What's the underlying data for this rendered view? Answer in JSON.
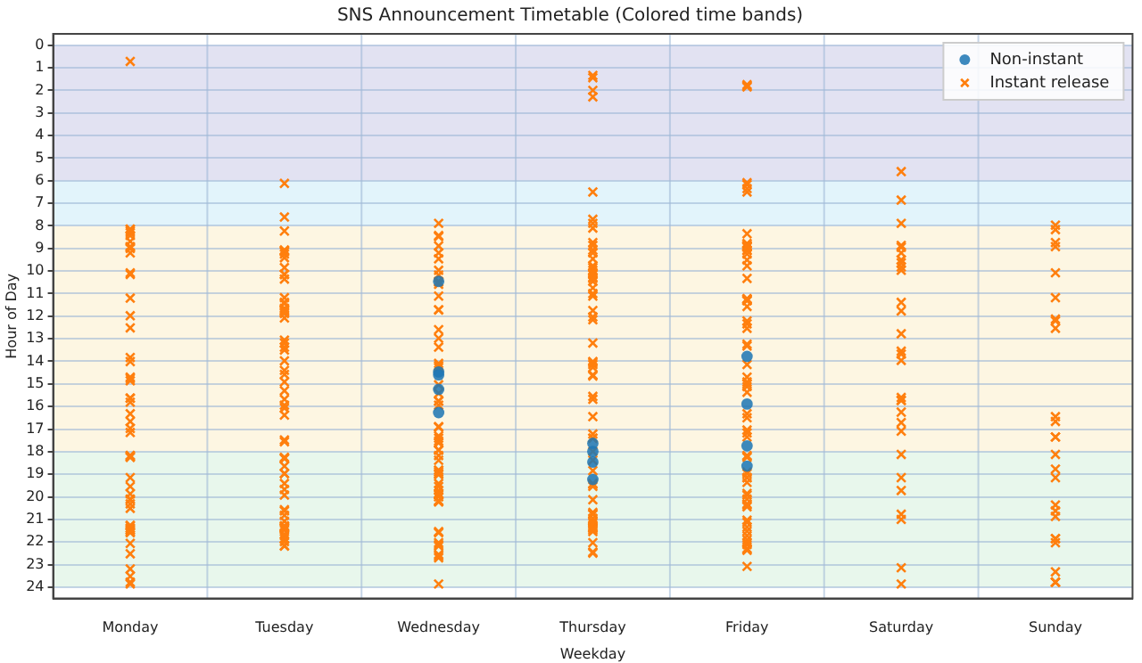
{
  "chart_data": {
    "type": "scatter",
    "title": "SNS Announcement Timetable (Colored time bands)",
    "xlabel": "Weekday",
    "ylabel": "Hour of Day",
    "categories": [
      "Monday",
      "Tuesday",
      "Wednesday",
      "Thursday",
      "Friday",
      "Saturday",
      "Sunday"
    ],
    "ylim": [
      24.5,
      -0.5
    ],
    "yticks": [
      0,
      1,
      2,
      3,
      4,
      5,
      6,
      7,
      8,
      9,
      10,
      11,
      12,
      13,
      14,
      15,
      16,
      17,
      18,
      19,
      20,
      21,
      22,
      23,
      24
    ],
    "grid": true,
    "legend": "top right",
    "bands": [
      {
        "axis": "y",
        "from": 0,
        "to": 6,
        "color": "#e2e2f2"
      },
      {
        "axis": "y",
        "from": 6,
        "to": 8,
        "color": "#e2f4fb"
      },
      {
        "axis": "y",
        "from": 8,
        "to": 18,
        "color": "#fdf6e2"
      },
      {
        "axis": "y",
        "from": 18,
        "to": 24,
        "color": "#e8f7ec"
      }
    ],
    "series": [
      {
        "name": "Non-instant",
        "color": "#1f77b4",
        "marker": "circle",
        "x": [
          "Wednesday",
          "Wednesday",
          "Wednesday",
          "Wednesday",
          "Wednesday",
          "Thursday",
          "Thursday",
          "Thursday",
          "Thursday",
          "Friday",
          "Friday",
          "Friday",
          "Friday"
        ],
        "values": [
          10.46,
          14.47,
          14.6,
          15.24,
          16.27,
          17.63,
          17.99,
          18.46,
          19.23,
          13.78,
          15.89,
          17.74,
          18.64
        ]
      },
      {
        "name": "Instant release",
        "color": "#ff7f0e",
        "marker": "cross",
        "x": [
          "Monday",
          "Monday",
          "Monday",
          "Monday",
          "Monday",
          "Monday",
          "Monday",
          "Monday",
          "Monday",
          "Monday",
          "Monday",
          "Monday",
          "Monday",
          "Monday",
          "Monday",
          "Monday",
          "Monday",
          "Monday",
          "Monday",
          "Monday",
          "Monday",
          "Monday",
          "Monday",
          "Monday",
          "Monday",
          "Monday",
          "Monday",
          "Monday",
          "Monday",
          "Monday",
          "Monday",
          "Monday",
          "Monday",
          "Monday",
          "Monday",
          "Monday",
          "Monday",
          "Monday",
          "Monday",
          "Monday",
          "Monday",
          "Monday",
          "Monday",
          "Monday",
          "Monday",
          "Monday",
          "Monday",
          "Monday",
          "Monday",
          "Monday",
          "Monday",
          "Monday",
          "Monday",
          "Tuesday",
          "Tuesday",
          "Tuesday",
          "Tuesday",
          "Tuesday",
          "Tuesday",
          "Tuesday",
          "Tuesday",
          "Tuesday",
          "Tuesday",
          "Tuesday",
          "Tuesday",
          "Tuesday",
          "Tuesday",
          "Tuesday",
          "Tuesday",
          "Tuesday",
          "Tuesday",
          "Tuesday",
          "Tuesday",
          "Tuesday",
          "Tuesday",
          "Tuesday",
          "Tuesday",
          "Tuesday",
          "Tuesday",
          "Tuesday",
          "Tuesday",
          "Tuesday",
          "Tuesday",
          "Tuesday",
          "Tuesday",
          "Tuesday",
          "Tuesday",
          "Tuesday",
          "Tuesday",
          "Tuesday",
          "Tuesday",
          "Tuesday",
          "Tuesday",
          "Tuesday",
          "Tuesday",
          "Tuesday",
          "Tuesday",
          "Tuesday",
          "Tuesday",
          "Tuesday",
          "Tuesday",
          "Tuesday",
          "Tuesday",
          "Tuesday",
          "Tuesday",
          "Tuesday",
          "Tuesday",
          "Tuesday",
          "Tuesday",
          "Tuesday",
          "Tuesday",
          "Tuesday",
          "Tuesday",
          "Tuesday",
          "Wednesday",
          "Wednesday",
          "Wednesday",
          "Wednesday",
          "Wednesday",
          "Wednesday",
          "Wednesday",
          "Wednesday",
          "Wednesday",
          "Wednesday",
          "Wednesday",
          "Wednesday",
          "Wednesday",
          "Wednesday",
          "Wednesday",
          "Wednesday",
          "Wednesday",
          "Wednesday",
          "Wednesday",
          "Wednesday",
          "Wednesday",
          "Wednesday",
          "Wednesday",
          "Wednesday",
          "Wednesday",
          "Wednesday",
          "Wednesday",
          "Wednesday",
          "Wednesday",
          "Wednesday",
          "Wednesday",
          "Wednesday",
          "Wednesday",
          "Wednesday",
          "Wednesday",
          "Wednesday",
          "Wednesday",
          "Wednesday",
          "Wednesday",
          "Wednesday",
          "Wednesday",
          "Wednesday",
          "Wednesday",
          "Wednesday",
          "Wednesday",
          "Wednesday",
          "Wednesday",
          "Wednesday",
          "Wednesday",
          "Wednesday",
          "Wednesday",
          "Wednesday",
          "Wednesday",
          "Wednesday",
          "Wednesday",
          "Wednesday",
          "Wednesday",
          "Wednesday",
          "Wednesday",
          "Thursday",
          "Thursday",
          "Thursday",
          "Thursday",
          "Thursday",
          "Thursday",
          "Thursday",
          "Thursday",
          "Thursday",
          "Thursday",
          "Thursday",
          "Thursday",
          "Thursday",
          "Thursday",
          "Thursday",
          "Thursday",
          "Thursday",
          "Thursday",
          "Thursday",
          "Thursday",
          "Thursday",
          "Thursday",
          "Thursday",
          "Thursday",
          "Thursday",
          "Thursday",
          "Thursday",
          "Thursday",
          "Thursday",
          "Thursday",
          "Thursday",
          "Thursday",
          "Thursday",
          "Thursday",
          "Thursday",
          "Thursday",
          "Thursday",
          "Thursday",
          "Thursday",
          "Thursday",
          "Thursday",
          "Thursday",
          "Thursday",
          "Thursday",
          "Thursday",
          "Thursday",
          "Thursday",
          "Thursday",
          "Thursday",
          "Thursday",
          "Thursday",
          "Thursday",
          "Thursday",
          "Thursday",
          "Thursday",
          "Thursday",
          "Thursday",
          "Thursday",
          "Thursday",
          "Thursday",
          "Thursday",
          "Thursday",
          "Thursday",
          "Friday",
          "Friday",
          "Friday",
          "Friday",
          "Friday",
          "Friday",
          "Friday",
          "Friday",
          "Friday",
          "Friday",
          "Friday",
          "Friday",
          "Friday",
          "Friday",
          "Friday",
          "Friday",
          "Friday",
          "Friday",
          "Friday",
          "Friday",
          "Friday",
          "Friday",
          "Friday",
          "Friday",
          "Friday",
          "Friday",
          "Friday",
          "Friday",
          "Friday",
          "Friday",
          "Friday",
          "Friday",
          "Friday",
          "Friday",
          "Friday",
          "Friday",
          "Friday",
          "Friday",
          "Friday",
          "Friday",
          "Friday",
          "Friday",
          "Friday",
          "Friday",
          "Friday",
          "Friday",
          "Friday",
          "Friday",
          "Friday",
          "Friday",
          "Friday",
          "Friday",
          "Friday",
          "Friday",
          "Friday",
          "Friday",
          "Friday",
          "Friday",
          "Friday",
          "Friday",
          "Friday",
          "Friday",
          "Friday",
          "Friday",
          "Friday",
          "Friday",
          "Friday",
          "Friday",
          "Friday",
          "Saturday",
          "Saturday",
          "Saturday",
          "Saturday",
          "Saturday",
          "Saturday",
          "Saturday",
          "Saturday",
          "Saturday",
          "Saturday",
          "Saturday",
          "Saturday",
          "Saturday",
          "Saturday",
          "Saturday",
          "Saturday",
          "Saturday",
          "Saturday",
          "Saturday",
          "Saturday",
          "Saturday",
          "Saturday",
          "Saturday",
          "Saturday",
          "Saturday",
          "Saturday",
          "Saturday",
          "Saturday",
          "Saturday",
          "Sunday",
          "Sunday",
          "Sunday",
          "Sunday",
          "Sunday",
          "Sunday",
          "Sunday",
          "Sunday",
          "Sunday",
          "Sunday",
          "Sunday",
          "Sunday",
          "Sunday",
          "Sunday",
          "Sunday",
          "Sunday",
          "Sunday",
          "Sunday",
          "Sunday",
          "Sunday",
          "Sunday",
          "Sunday",
          "Sunday",
          "Sunday",
          "Sunday",
          "Sunday"
        ],
        "values": [
          0.72,
          8.15,
          8.23,
          8.3,
          8.15,
          8.43,
          8.69,
          8.92,
          9.0,
          8.95,
          9.2,
          10.08,
          10.15,
          11.2,
          11.98,
          12.52,
          13.83,
          14.01,
          14.7,
          14.76,
          14.86,
          15.63,
          15.63,
          15.81,
          16.32,
          16.66,
          16.97,
          17.15,
          18.17,
          18.25,
          18.23,
          18.17,
          19.15,
          19.54,
          19.87,
          20.13,
          20.1,
          20.31,
          20.51,
          21.29,
          21.26,
          21.39,
          21.47,
          21.47,
          21.39,
          21.54,
          21.59,
          22.06,
          22.52,
          23.19,
          23.78,
          23.52,
          23.86,
          6.12,
          7.61,
          8.23,
          9.25,
          9.15,
          9.1,
          9.07,
          9.41,
          10.15,
          10.36,
          9.85,
          10.15,
          11.18,
          11.44,
          11.39,
          11.65,
          11.7,
          11.88,
          11.77,
          11.83,
          12.08,
          13.06,
          13.37,
          13.19,
          13.5,
          13.98,
          14.4,
          14.58,
          14.91,
          15.3,
          15.94,
          15.68,
          16.07,
          16.38,
          17.48,
          17.56,
          18.3,
          18.25,
          18.3,
          18.64,
          18.97,
          18.97,
          19.41,
          19.67,
          19.92,
          20.62,
          20.57,
          20.82,
          21.08,
          21.29,
          21.39,
          21.72,
          21.47,
          21.65,
          21.34,
          21.39,
          21.29,
          21.85,
          21.98,
          22.18,
          22.16,
          7.89,
          8.43,
          8.48,
          8.89,
          9.2,
          9.46,
          9.97,
          10.18,
          10.46,
          10.49,
          10.59,
          11.11,
          11.72,
          11.72,
          12.6,
          12.98,
          13.37,
          14.09,
          14.27,
          14.19,
          15.04,
          15.42,
          15.76,
          15.76,
          15.94,
          16.89,
          16.92,
          17.3,
          17.53,
          17.61,
          17.92,
          17.4,
          17.94,
          18.38,
          18.17,
          18.82,
          18.97,
          18.9,
          19.02,
          18.82,
          19.41,
          19.54,
          19.72,
          19.85,
          19.92,
          20.18,
          20.0,
          20.18,
          19.87,
          20.23,
          21.54,
          21.59,
          22.11,
          22.03,
          22.18,
          22.62,
          22.7,
          22.55,
          23.86,
          1.44,
          1.34,
          2.29,
          2.0,
          6.5,
          7.71,
          7.89,
          8.1,
          8.74,
          8.87,
          9.07,
          9.2,
          9.46,
          9.85,
          9.97,
          10.1,
          9.77,
          10.28,
          10.46,
          10.15,
          10.08,
          10.33,
          10.75,
          11.11,
          11.0,
          11.75,
          12.03,
          12.16,
          13.19,
          14.14,
          14.6,
          14.65,
          14.06,
          14.01,
          14.27,
          15.55,
          15.68,
          16.45,
          17.22,
          17.4,
          17.4,
          17.99,
          18.38,
          18.84,
          19.41,
          19.54,
          19.46,
          20.13,
          20.77,
          20.69,
          20.77,
          20.95,
          21.08,
          21.34,
          21.54,
          21.29,
          21.16,
          21.39,
          21.39,
          21.47,
          22.03,
          22.49,
          22.44,
          1.75,
          1.8,
          1.85,
          6.09,
          6.17,
          6.35,
          6.5,
          8.35,
          8.79,
          9.1,
          9.25,
          9.07,
          8.92,
          8.79,
          8.87,
          8.89,
          8.95,
          8.89,
          9.51,
          9.77,
          10.33,
          11.31,
          11.31,
          11.26,
          11.23,
          11.23,
          11.57,
          12.54,
          12.34,
          12.21,
          13.32,
          13.24,
          14.14,
          14.7,
          15.12,
          14.91,
          14.99,
          15.37,
          16.32,
          16.5,
          17.04,
          17.35,
          17.17,
          18.17,
          18.25,
          18.2,
          18.97,
          19.15,
          18.9,
          19.15,
          19.36,
          19.92,
          20.1,
          19.85,
          20.31,
          20.44,
          20.36,
          21.03,
          21.13,
          21.34,
          21.52,
          21.72,
          21.9,
          22.29,
          22.03,
          22.11,
          22.31,
          22.37,
          23.08,
          5.6,
          6.86,
          7.89,
          8.87,
          8.95,
          9.2,
          9.51,
          9.64,
          9.82,
          9.97,
          11.39,
          11.77,
          12.78,
          13.55,
          13.68,
          13.96,
          15.73,
          15.73,
          15.6,
          16.25,
          16.71,
          17.09,
          18.12,
          19.15,
          19.72,
          20.77,
          21.0,
          23.14,
          23.86,
          7.97,
          8.17,
          8.74,
          8.92,
          10.08,
          11.18,
          12.13,
          12.54,
          12.21,
          16.45,
          16.66,
          17.35,
          17.35,
          18.12,
          18.77,
          19.15,
          20.36,
          20.62,
          20.87,
          22.03,
          21.85,
          21.85,
          23.32,
          23.78,
          23.78,
          23.78
        ]
      }
    ]
  }
}
